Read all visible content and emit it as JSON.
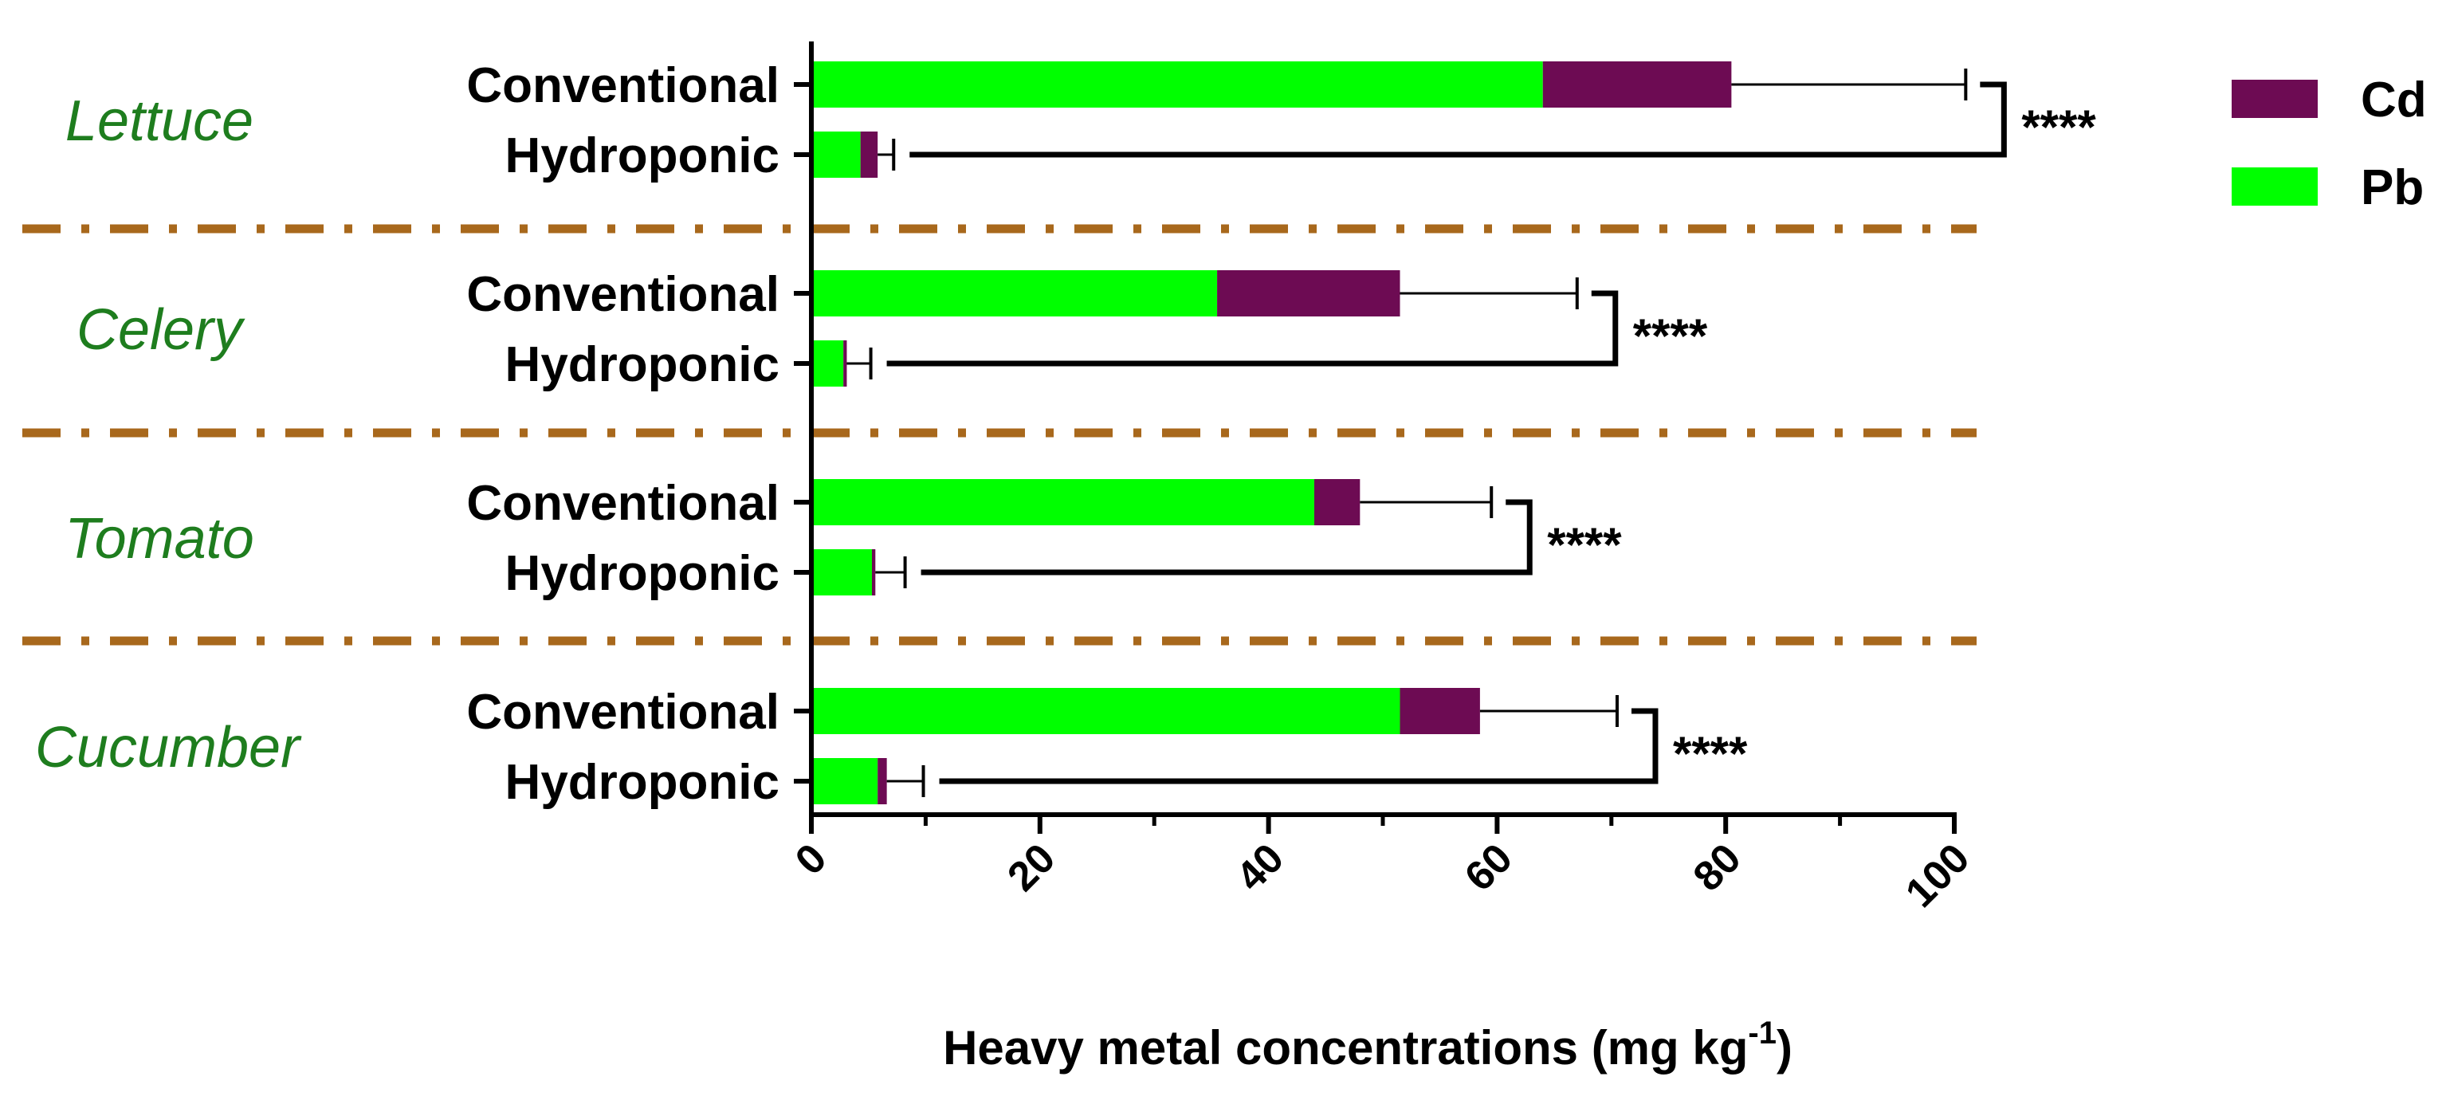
{
  "chart_data": {
    "type": "bar",
    "orientation": "horizontal",
    "stacked": true,
    "title": "",
    "xlabel": "Heavy metal concentrations (mg kg",
    "xlabel_superscript": "-1",
    "xlabel_suffix": ")",
    "xlim": [
      0,
      100
    ],
    "xticks": [
      "0",
      "20",
      "40",
      "60",
      "80",
      "100"
    ],
    "grid": false,
    "legend_position": "top-right",
    "colors": {
      "Pb": "#00ff00",
      "Cd": "#6d0b53",
      "separator": "#a8681c",
      "group_text": "#1e7d1e"
    },
    "legend": [
      {
        "name": "Cd",
        "color": "#6d0b53"
      },
      {
        "name": "Pb",
        "color": "#00ff00"
      }
    ],
    "groups": [
      {
        "name": "Lettuce",
        "significance": "****",
        "rows": [
          {
            "label": "Conventional",
            "Pb": 64,
            "Cd": 16.5,
            "error_to": 101
          },
          {
            "label": "Hydroponic",
            "Pb": 4.3,
            "Cd": 1.5,
            "error_to": 7.2
          }
        ]
      },
      {
        "name": "Celery",
        "significance": "****",
        "rows": [
          {
            "label": "Conventional",
            "Pb": 35.5,
            "Cd": 16,
            "error_to": 67
          },
          {
            "label": "Hydroponic",
            "Pb": 2.8,
            "Cd": 0.3,
            "error_to": 5.2
          }
        ]
      },
      {
        "name": "Tomato",
        "significance": "****",
        "rows": [
          {
            "label": "Conventional",
            "Pb": 44,
            "Cd": 4,
            "error_to": 59.5
          },
          {
            "label": "Hydroponic",
            "Pb": 5.3,
            "Cd": 0.3,
            "error_to": 8.2
          }
        ]
      },
      {
        "name": "Cucumber",
        "significance": "****",
        "rows": [
          {
            "label": "Conventional",
            "Pb": 51.5,
            "Cd": 7,
            "error_to": 70.5
          },
          {
            "label": "Hydroponic",
            "Pb": 5.8,
            "Cd": 0.8,
            "error_to": 9.8
          }
        ]
      }
    ]
  }
}
